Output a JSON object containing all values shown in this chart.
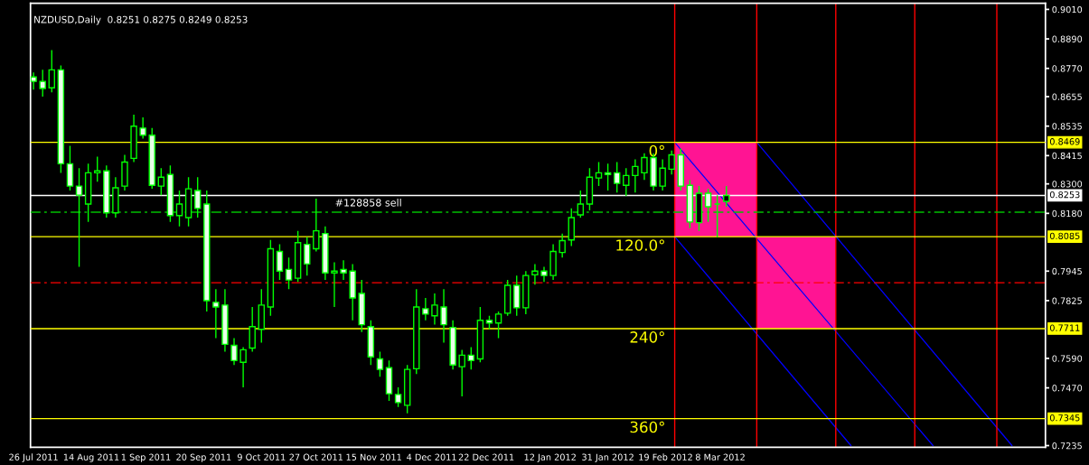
{
  "chart_data": {
    "type": "candlestick",
    "title": "NZDUSD,Daily  0.8251 0.8275 0.8249 0.8253",
    "series": [
      {
        "color": "#00ff00",
        "x": [
          "2011-07-26",
          "2011-07-29",
          "2011-08-01",
          "2011-08-04",
          "2011-08-07",
          "2011-08-10",
          "2011-08-13",
          "2011-08-16",
          "2011-08-19",
          "2011-08-22",
          "2011-08-25",
          "2011-08-28",
          "2011-08-31",
          "2011-09-03",
          "2011-09-06",
          "2011-09-09",
          "2011-09-12",
          "2011-09-15",
          "2011-09-18",
          "2011-09-21",
          "2011-09-24",
          "2011-09-27",
          "2011-09-30",
          "2011-10-03",
          "2011-10-06",
          "2011-10-09",
          "2011-10-12",
          "2011-10-15",
          "2011-10-18",
          "2011-10-21",
          "2011-10-24",
          "2011-10-27",
          "2011-10-30",
          "2011-11-02",
          "2011-11-05",
          "2011-11-08",
          "2011-11-11",
          "2011-11-14",
          "2011-11-17",
          "2011-11-20",
          "2011-11-23",
          "2011-11-26",
          "2011-11-29",
          "2011-12-02",
          "2011-12-05",
          "2011-12-08",
          "2011-12-11",
          "2011-12-14",
          "2011-12-17",
          "2011-12-20",
          "2011-12-23",
          "2011-12-26",
          "2011-12-29",
          "2012-01-01",
          "2012-01-04",
          "2012-01-07",
          "2012-01-10",
          "2012-01-13",
          "2012-01-16",
          "2012-01-19",
          "2012-01-22",
          "2012-01-25",
          "2012-01-28",
          "2012-01-31",
          "2012-02-03",
          "2012-02-06",
          "2012-02-09",
          "2012-02-12",
          "2012-02-15",
          "2012-02-18",
          "2012-02-21",
          "2012-02-24",
          "2012-02-27",
          "2012-03-01",
          "2012-03-04",
          "2012-03-07",
          "2012-03-10"
        ],
        "ohlc": [
          [
            0.8735,
            0.8753,
            0.8684,
            0.8717
          ],
          [
            0.8717,
            0.8764,
            0.8655,
            0.8688
          ],
          [
            0.8691,
            0.8844,
            0.8673,
            0.8764
          ],
          [
            0.8764,
            0.8782,
            0.8345,
            0.8382
          ],
          [
            0.8382,
            0.8455,
            0.8273,
            0.8291
          ],
          [
            0.8291,
            0.8364,
            0.7963,
            0.8254
          ],
          [
            0.8218,
            0.8382,
            0.8145,
            0.8345
          ],
          [
            0.8345,
            0.8411,
            0.8309,
            0.8353
          ],
          [
            0.8353,
            0.8375,
            0.8163,
            0.8182
          ],
          [
            0.8182,
            0.8327,
            0.8163,
            0.8284
          ],
          [
            0.8291,
            0.8418,
            0.8273,
            0.8389
          ],
          [
            0.8404,
            0.8582,
            0.8389,
            0.8535
          ],
          [
            0.8527,
            0.8571,
            0.8484,
            0.8498
          ],
          [
            0.8498,
            0.8527,
            0.828,
            0.8294
          ],
          [
            0.8291,
            0.8364,
            0.8254,
            0.8327
          ],
          [
            0.8338,
            0.8375,
            0.8145,
            0.8171
          ],
          [
            0.8171,
            0.8273,
            0.8127,
            0.8218
          ],
          [
            0.8163,
            0.8327,
            0.8127,
            0.828
          ],
          [
            0.8273,
            0.8327,
            0.8163,
            0.82
          ],
          [
            0.8218,
            0.8273,
            0.7781,
            0.7825
          ],
          [
            0.7818,
            0.7872,
            0.7672,
            0.7799
          ],
          [
            0.7807,
            0.7872,
            0.7617,
            0.7647
          ],
          [
            0.7643,
            0.7672,
            0.7563,
            0.7581
          ],
          [
            0.7574,
            0.7636,
            0.7472,
            0.7625
          ],
          [
            0.7632,
            0.7799,
            0.7617,
            0.7719
          ],
          [
            0.7708,
            0.7872,
            0.7654,
            0.7807
          ],
          [
            0.7799,
            0.8072,
            0.7763,
            0.8036
          ],
          [
            0.8025,
            0.8054,
            0.7909,
            0.7945
          ],
          [
            0.7952,
            0.8,
            0.7872,
            0.7909
          ],
          [
            0.7916,
            0.8109,
            0.7901,
            0.8061
          ],
          [
            0.8054,
            0.8083,
            0.7927,
            0.7974
          ],
          [
            0.8036,
            0.824,
            0.8025,
            0.8109
          ],
          [
            0.8098,
            0.8127,
            0.7909,
            0.7938
          ],
          [
            0.7938,
            0.7981,
            0.7799,
            0.7945
          ],
          [
            0.7952,
            0.7989,
            0.7909,
            0.7938
          ],
          [
            0.7945,
            0.7974,
            0.7745,
            0.7836
          ],
          [
            0.7854,
            0.7909,
            0.7697,
            0.7727
          ],
          [
            0.7719,
            0.7745,
            0.7563,
            0.7596
          ],
          [
            0.7588,
            0.7617,
            0.7515,
            0.7545
          ],
          [
            0.7552,
            0.7581,
            0.7417,
            0.7446
          ],
          [
            0.7443,
            0.7472,
            0.7392,
            0.741
          ],
          [
            0.7399,
            0.7563,
            0.7366,
            0.7545
          ],
          [
            0.7548,
            0.7872,
            0.7526,
            0.7799
          ],
          [
            0.7792,
            0.7836,
            0.7745,
            0.777
          ],
          [
            0.7763,
            0.7854,
            0.7727,
            0.7807
          ],
          [
            0.7799,
            0.7872,
            0.7654,
            0.7727
          ],
          [
            0.7716,
            0.7745,
            0.7545,
            0.7563
          ],
          [
            0.7556,
            0.7625,
            0.7435,
            0.7603
          ],
          [
            0.7603,
            0.7636,
            0.7545,
            0.7581
          ],
          [
            0.7588,
            0.7799,
            0.7574,
            0.7745
          ],
          [
            0.7745,
            0.7763,
            0.7708,
            0.7734
          ],
          [
            0.7734,
            0.7781,
            0.7672,
            0.777
          ],
          [
            0.7774,
            0.7909,
            0.7763,
            0.7887
          ],
          [
            0.7887,
            0.7927,
            0.7763,
            0.7796
          ],
          [
            0.7796,
            0.7945,
            0.777,
            0.7927
          ],
          [
            0.793,
            0.7974,
            0.789,
            0.7945
          ],
          [
            0.7945,
            0.7963,
            0.7901,
            0.7927
          ],
          [
            0.7927,
            0.8054,
            0.7909,
            0.8025
          ],
          [
            0.8021,
            0.8098,
            0.8,
            0.8069
          ],
          [
            0.8072,
            0.82,
            0.8047,
            0.8163
          ],
          [
            0.8174,
            0.8273,
            0.8163,
            0.8218
          ],
          [
            0.8218,
            0.8364,
            0.8192,
            0.8327
          ],
          [
            0.8324,
            0.8389,
            0.8291,
            0.8345
          ],
          [
            0.8345,
            0.8382,
            0.8273,
            0.8338
          ],
          [
            0.8345,
            0.8389,
            0.8265,
            0.8302
          ],
          [
            0.8294,
            0.8364,
            0.8251,
            0.8334
          ],
          [
            0.8334,
            0.84,
            0.8265,
            0.8371
          ],
          [
            0.8345,
            0.8425,
            0.8316,
            0.8407
          ],
          [
            0.8407,
            0.8425,
            0.8273,
            0.8291
          ],
          [
            0.8291,
            0.84,
            0.8273,
            0.8364
          ],
          [
            0.836,
            0.8436,
            0.8338,
            0.8418
          ],
          [
            0.8418,
            0.8444,
            0.8273,
            0.8291
          ],
          [
            0.8294,
            0.8316,
            0.812,
            0.8145
          ],
          [
            0.8142,
            0.8291,
            0.8109,
            0.8262
          ],
          [
            0.8262,
            0.828,
            0.8145,
            0.8207
          ],
          [
            0.8218,
            0.8254,
            0.8083,
            0.8218
          ],
          [
            0.8229,
            0.8291,
            0.8207,
            0.8253
          ]
        ]
      },
      {
        "type": "line",
        "color": "#0000ff",
        "x": [
          "2012-02-22",
          "2012-05-17"
        ],
        "values": [
          0.8469,
          0.7235
        ]
      },
      {
        "type": "line",
        "color": "#0000ff",
        "x": [
          "2012-03-20",
          "2012-06-12"
        ],
        "values": [
          0.8469,
          0.7235
        ]
      },
      {
        "type": "line",
        "color": "#0000ff",
        "x": [
          "2012-02-22",
          "2012-04-20"
        ],
        "values": [
          0.8085,
          0.7235
        ]
      }
    ],
    "annotations": [
      {
        "text": "0°",
        "x": "2012-02-19",
        "y": 0.8469
      },
      {
        "text": "120.0°",
        "x": "2012-02-19",
        "y": 0.8085
      },
      {
        "text": "240°",
        "x": "2012-02-19",
        "y": 0.7711
      },
      {
        "text": "360°",
        "x": "2012-02-19",
        "y": 0.7345
      }
    ],
    "xlim": [
      "2011-07-25",
      "2012-06-23"
    ],
    "xticks": [
      {
        "value": "2011-07-26",
        "label": "26 Jul 2011"
      },
      {
        "value": "2011-08-14",
        "label": "14 Aug 2011"
      },
      {
        "value": "2011-09-01",
        "label": "1 Sep 2011"
      },
      {
        "value": "2011-09-20",
        "label": "20 Sep 2011"
      },
      {
        "value": "2011-10-09",
        "label": "9 Oct 2011"
      },
      {
        "value": "2011-10-27",
        "label": "27 Oct 2011"
      },
      {
        "value": "2011-11-15",
        "label": "15 Nov 2011"
      },
      {
        "value": "2011-12-04",
        "label": "4 Dec 2011"
      },
      {
        "value": "2011-12-22",
        "label": "22 Dec 2011"
      },
      {
        "value": "2012-01-12",
        "label": "12 Jan 2012"
      },
      {
        "value": "2012-01-31",
        "label": "31 Jan 2012"
      },
      {
        "value": "2012-02-19",
        "label": "19 Feb 2012"
      },
      {
        "value": "2012-03-08",
        "label": "8 Mar 2012"
      }
    ],
    "ylim": [
      0.7228,
      0.9035
    ],
    "yticks": [
      {
        "value": 0.901,
        "label": "0.9010"
      },
      {
        "value": 0.889,
        "label": "0.8890"
      },
      {
        "value": 0.877,
        "label": "0.8770"
      },
      {
        "value": 0.8655,
        "label": "0.8655"
      },
      {
        "value": 0.8535,
        "label": "0.8535"
      },
      {
        "value": 0.8415,
        "label": "0.8415"
      },
      {
        "value": 0.83,
        "label": "0.8300"
      },
      {
        "value": 0.818,
        "label": "0.8180"
      },
      {
        "value": 0.7945,
        "label": "0.7945"
      },
      {
        "value": 0.7825,
        "label": "0.7825"
      },
      {
        "value": 0.759,
        "label": "0.7590"
      },
      {
        "value": 0.747,
        "label": "0.7470"
      },
      {
        "value": 0.7235,
        "label": "0.7235"
      }
    ],
    "ref_lines": [
      {
        "axis": "y",
        "value": 0.8469,
        "label": "0.8469",
        "color": "#ffff00",
        "line_style": "solid"
      },
      {
        "axis": "y",
        "value": 0.8085,
        "label": "0.8085",
        "color": "#ffff00",
        "line_style": "solid"
      },
      {
        "axis": "y",
        "value": 0.7711,
        "label": "0.7711",
        "color": "#ffff00",
        "line_style": "solid"
      },
      {
        "axis": "y",
        "value": 0.7345,
        "label": "0.7345",
        "color": "#ffff00",
        "line_style": "solid"
      },
      {
        "axis": "y",
        "value": 0.8253,
        "label": "0.8253",
        "color": "#ffffff",
        "line_style": "solid"
      },
      {
        "axis": "y",
        "value": 0.8185,
        "label": "#128858 sell",
        "color": "#00c000",
        "line_style": "dashed"
      },
      {
        "axis": "y",
        "value": 0.7898,
        "label": null,
        "color": "#ff0000",
        "line_style": "dashed"
      },
      {
        "axis": "x",
        "value": "2012-02-22",
        "label": null,
        "color": "#ff0000",
        "line_style": "solid"
      },
      {
        "axis": "x",
        "value": "2012-03-20",
        "label": null,
        "color": "#ff0000",
        "line_style": "solid"
      },
      {
        "axis": "x",
        "value": "2012-04-15",
        "label": null,
        "color": "#ff0000",
        "line_style": "solid"
      },
      {
        "axis": "x",
        "value": "2012-05-11",
        "label": null,
        "color": "#ff0000",
        "line_style": "solid"
      },
      {
        "axis": "x",
        "value": "2012-06-07",
        "label": null,
        "color": "#ff0000",
        "line_style": "solid"
      }
    ],
    "grid": false,
    "legend": false
  }
}
